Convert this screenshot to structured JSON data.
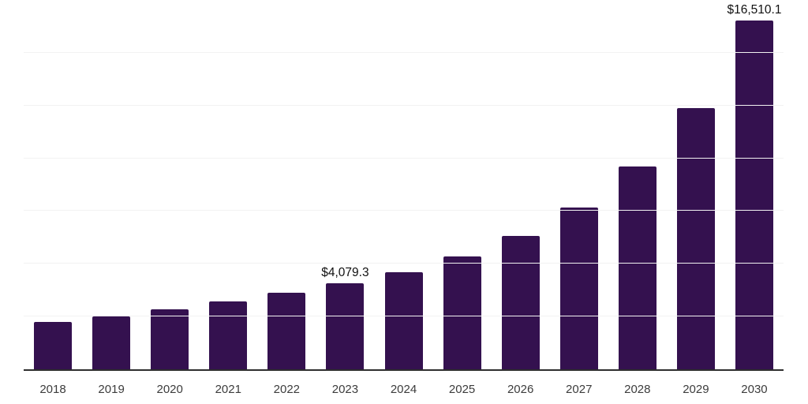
{
  "chart_data": {
    "type": "bar",
    "title": "",
    "xlabel": "",
    "ylabel": "",
    "categories": [
      "2018",
      "2019",
      "2020",
      "2021",
      "2022",
      "2023",
      "2024",
      "2025",
      "2026",
      "2027",
      "2028",
      "2029",
      "2030"
    ],
    "values": [
      2250,
      2520,
      2850,
      3200,
      3620,
      4079.3,
      4590,
      5340,
      6310,
      7680,
      9600,
      12380,
      16510.1
    ],
    "data_labels": {
      "2023": "$4,079.3",
      "2030": "$16,510.1"
    },
    "ylim": [
      0,
      17500
    ],
    "grid_step": 2500,
    "grid": true,
    "legend": false,
    "colors": {
      "bar": "#34114F",
      "axis_line": "#2e2e2e",
      "gridline": "#f2f2f2",
      "tick_label": "#3c3c3c",
      "value_label": "#111111",
      "background": "#ffffff"
    }
  }
}
